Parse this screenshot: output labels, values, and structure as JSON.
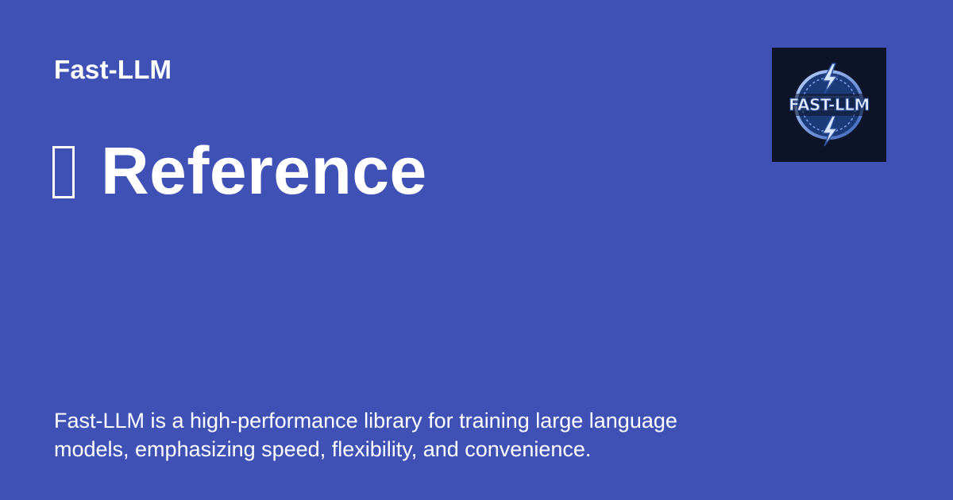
{
  "site": {
    "name": "Fast-LLM"
  },
  "page": {
    "title": "Reference",
    "title_icon": "missing-glyph-box",
    "description_lines": [
      "Fast-LLM is a high-performance library for training large language",
      "models, emphasizing speed, flexibility, and convenience."
    ]
  },
  "logo": {
    "wordmark": "FAST-LLM",
    "icon": "lightning-bolt-badge-icon"
  },
  "colors": {
    "background": "#3f51b5",
    "text": "#ffffff",
    "logo_background": "#0e1428",
    "logo_accent": "#8fb6ff"
  }
}
